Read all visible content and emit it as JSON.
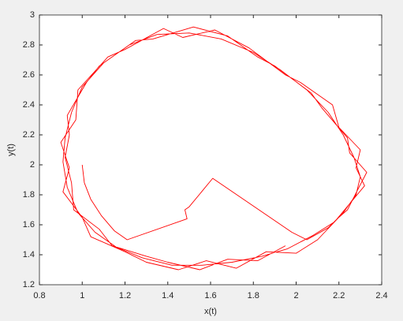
{
  "chart_data": {
    "type": "line",
    "color": "#ff0000",
    "x_label": "x(t)",
    "y_label": "y(t)",
    "xlim": [
      0.8,
      2.4
    ],
    "ylim": [
      1.2,
      3
    ],
    "xticks": [
      0.8,
      1,
      1.2,
      1.4,
      1.6,
      1.8,
      2,
      2.2,
      2.4
    ],
    "yticks": [
      1.2,
      1.4,
      1.6,
      1.8,
      2,
      2.2,
      2.4,
      2.6,
      2.8,
      3
    ],
    "x": [
      1,
      1.01,
      1.04,
      1.09,
      1.15,
      1.21,
      1.49,
      1.48,
      1.5,
      1.61,
      1.98,
      2.05,
      2.15,
      2.22,
      2.28,
      2.3,
      2.27,
      2.22,
      2.15,
      2.05,
      1.93,
      1.8,
      1.65,
      1.5,
      1.35,
      1.22,
      1.1,
      1.0,
      0.95,
      0.92,
      0.91,
      0.93,
      0.98,
      1.06,
      1.16,
      1.28,
      1.42,
      1.56,
      1.7,
      1.84,
      1.96,
      2.08,
      2.18,
      2.25,
      2.32,
      2.28,
      2.3,
      2.2,
      2.17,
      2.02,
      1.95,
      1.78,
      1.62,
      1.47,
      1.38,
      1.2,
      1.12,
      0.98,
      0.97,
      0.9,
      0.94,
      0.91,
      1.0,
      1.04,
      1.2,
      1.3,
      1.45,
      1.58,
      1.72,
      1.86,
      2.0,
      2.1,
      2.2,
      2.24,
      2.29,
      2.33,
      2.25,
      2.24,
      2.12,
      2.07,
      1.9,
      1.82,
      1.68,
      1.52,
      1.33,
      1.25,
      1.08,
      1.02,
      0.93,
      0.94,
      0.92,
      0.95,
      0.96,
      1.08,
      1.14,
      1.3,
      1.4,
      1.55,
      1.68,
      1.82,
      1.95
    ],
    "y": [
      2,
      1.88,
      1.77,
      1.66,
      1.56,
      1.5,
      1.64,
      1.7,
      1.72,
      1.91,
      1.55,
      1.5,
      1.58,
      1.68,
      1.8,
      1.92,
      2.05,
      2.2,
      2.35,
      2.5,
      2.63,
      2.75,
      2.84,
      2.88,
      2.87,
      2.8,
      2.68,
      2.52,
      2.35,
      2.18,
      2.02,
      1.85,
      1.68,
      1.55,
      1.45,
      1.38,
      1.33,
      1.33,
      1.35,
      1.39,
      1.44,
      1.53,
      1.62,
      1.74,
      1.86,
      1.98,
      2.1,
      2.25,
      2.4,
      2.55,
      2.6,
      2.78,
      2.9,
      2.85,
      2.91,
      2.77,
      2.72,
      2.5,
      2.3,
      2.15,
      1.98,
      1.82,
      1.65,
      1.52,
      1.42,
      1.35,
      1.3,
      1.36,
      1.31,
      1.42,
      1.41,
      1.5,
      1.65,
      1.7,
      1.84,
      1.95,
      2.08,
      2.18,
      2.38,
      2.48,
      2.66,
      2.72,
      2.86,
      2.92,
      2.84,
      2.83,
      2.66,
      2.55,
      2.33,
      2.2,
      2.05,
      1.88,
      1.7,
      1.57,
      1.46,
      1.39,
      1.35,
      1.3,
      1.37,
      1.36,
      1.46
    ]
  }
}
